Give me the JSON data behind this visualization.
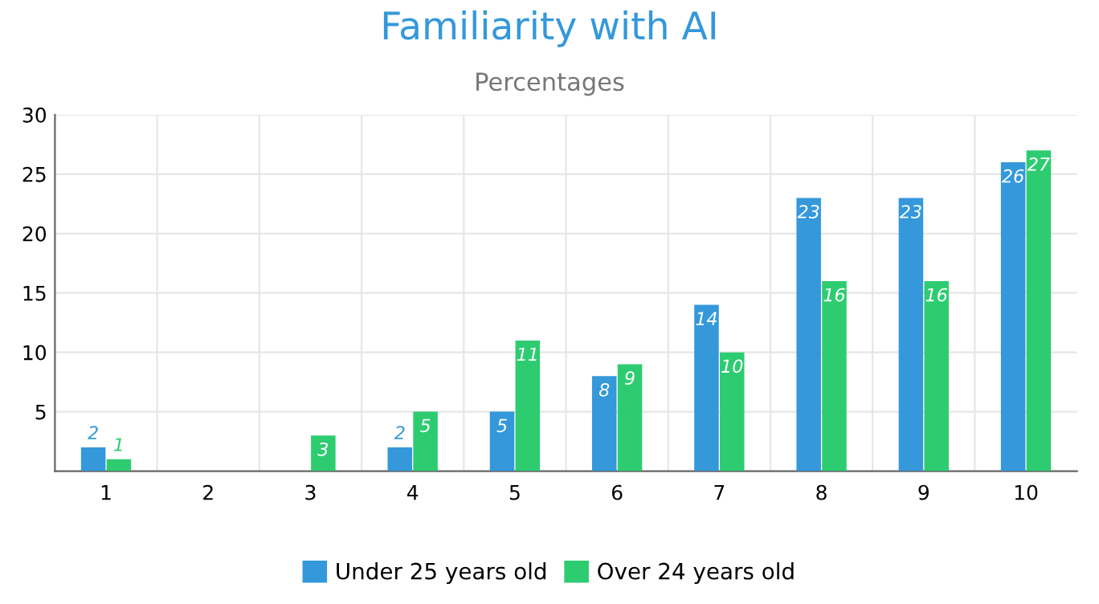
{
  "chart_data": {
    "type": "bar",
    "title": "Familiarity with AI",
    "subtitle": "Percentages",
    "categories": [
      "1",
      "2",
      "3",
      "4",
      "5",
      "6",
      "7",
      "8",
      "9",
      "10"
    ],
    "series": [
      {
        "name": "Under 25 years old",
        "color": "#3498db",
        "values": [
          2,
          0,
          0,
          2,
          5,
          8,
          14,
          23,
          23,
          26
        ],
        "value_labels": [
          "2",
          null,
          null,
          "2",
          "5",
          "8",
          "14",
          "23",
          "23",
          "26"
        ]
      },
      {
        "name": "Over 24 years old",
        "color": "#2ecc71",
        "values": [
          1,
          0,
          3,
          5,
          11,
          9,
          10,
          16,
          16,
          27
        ],
        "value_labels": [
          "1",
          null,
          "3",
          "5",
          "11",
          "9",
          "10",
          "16",
          "16",
          "27"
        ]
      }
    ],
    "ylim": [
      0,
      30
    ],
    "yticks": [
      5,
      10,
      15,
      20,
      25,
      30
    ],
    "grid": true,
    "legend": "bottom"
  }
}
